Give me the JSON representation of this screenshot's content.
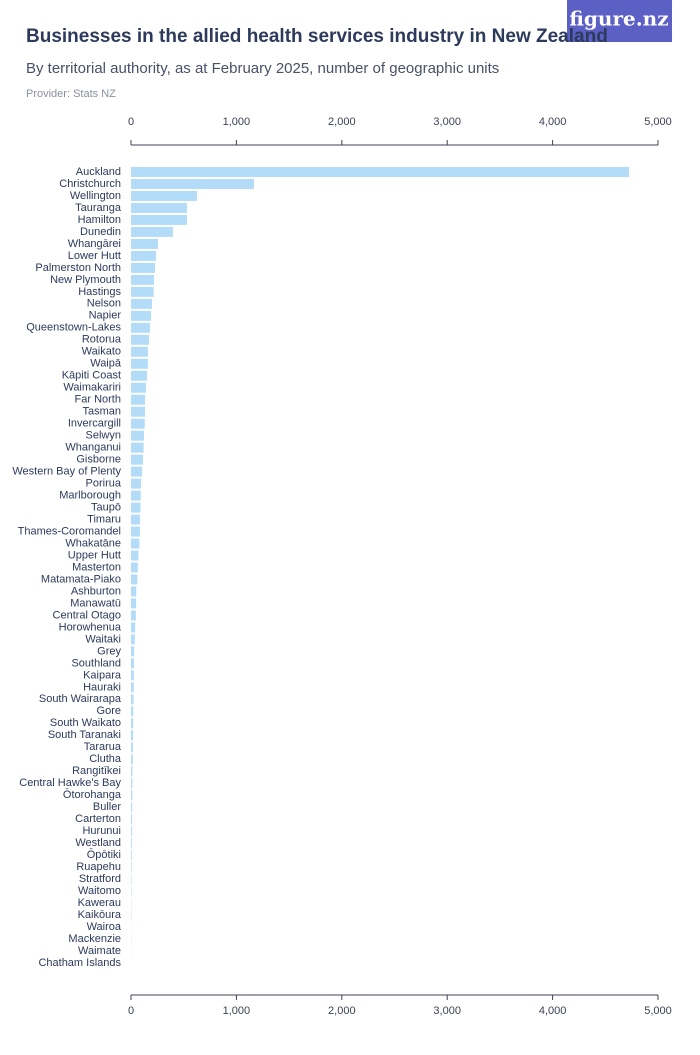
{
  "logo": "figure.nz",
  "chart_data": {
    "type": "hbar",
    "title": "Businesses in the allied health services industry in New Zealand",
    "subtitle": "By territorial authority, as at February 2025, number of geographic units",
    "provider": "Provider: Stats NZ",
    "color": "#b3dcf8",
    "xlim": [
      0,
      5000
    ],
    "xticks": [
      0,
      {
        "value": 1000,
        "label": "1,000"
      },
      {
        "value": 2000,
        "label": "2,000"
      },
      {
        "value": 3000,
        "label": "3,000"
      },
      {
        "value": 4000,
        "label": "4,000"
      },
      {
        "value": 5000,
        "label": "5,000"
      }
    ],
    "categories": [
      "Auckland",
      "Christchurch",
      "Wellington",
      "Tauranga",
      "Hamilton",
      "Dunedin",
      "Whangārei",
      "Lower Hutt",
      "Palmerston North",
      "New Plymouth",
      "Hastings",
      "Nelson",
      "Napier",
      "Queenstown-Lakes",
      "Rotorua",
      "Waikato",
      "Waipā",
      "Kāpiti Coast",
      "Waimakariri",
      "Far North",
      "Tasman",
      "Invercargill",
      "Selwyn",
      "Whanganui",
      "Gisborne",
      "Western Bay of Plenty",
      "Porirua",
      "Marlborough",
      "Taupō",
      "Timaru",
      "Thames-Coromandel",
      "Whakatāne",
      "Upper Hutt",
      "Masterton",
      "Matamata-Piako",
      "Ashburton",
      "Manawatū",
      "Central Otago",
      "Horowhenua",
      "Waitaki",
      "Grey",
      "Southland",
      "Kaipara",
      "Hauraki",
      "South Wairarapa",
      "Gore",
      "South Waikato",
      "South Taranaki",
      "Tararua",
      "Clutha",
      "Rangitīkei",
      "Central Hawke's Bay",
      "Ōtorohanga",
      "Buller",
      "Carterton",
      "Hurunui",
      "Westland",
      "Ōpōtiki",
      "Ruapehu",
      "Stratford",
      "Waitomo",
      "Kawerau",
      "Kaikōura",
      "Wairoa",
      "Mackenzie",
      "Waimate",
      "Chatham Islands"
    ],
    "values": [
      4725,
      1167,
      626,
      531,
      531,
      398,
      256,
      237,
      228,
      218,
      215,
      199,
      190,
      180,
      171,
      161,
      160,
      152,
      142,
      133,
      133,
      130,
      123,
      120,
      114,
      104,
      95,
      93,
      90,
      85,
      85,
      80,
      70,
      65,
      60,
      50,
      48,
      46,
      40,
      36,
      30,
      28,
      27,
      26,
      24,
      22,
      21,
      20,
      18,
      17,
      14,
      13,
      12,
      11,
      10,
      9,
      8,
      7,
      6,
      5,
      4,
      3,
      3,
      2,
      2,
      2,
      0
    ]
  }
}
